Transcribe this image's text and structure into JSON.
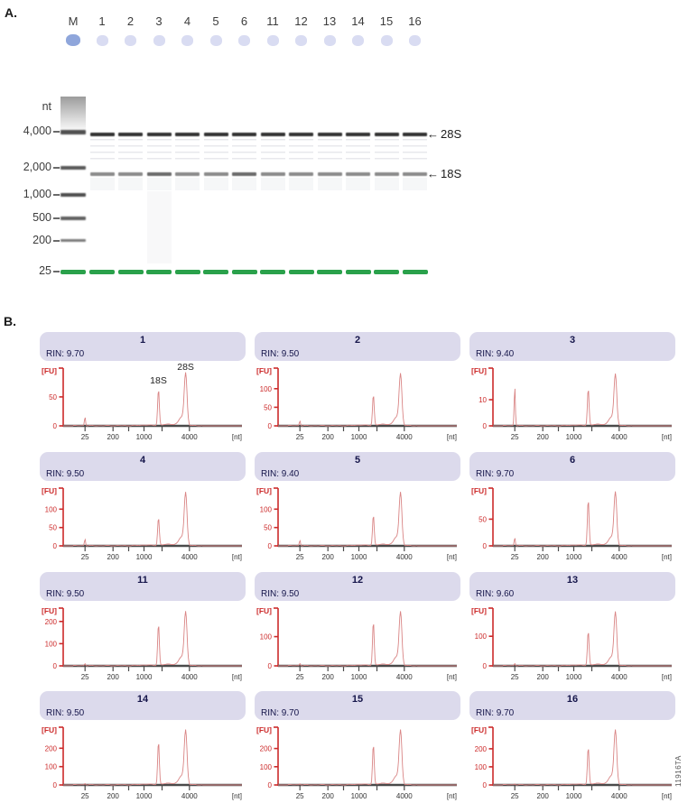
{
  "page": {
    "panel_a_label": "A.",
    "panel_b_label": "B.",
    "side_code": "11916TA"
  },
  "gel": {
    "axis_label": "nt",
    "lane_labels": [
      "M",
      "1",
      "2",
      "3",
      "4",
      "5",
      "6",
      "11",
      "12",
      "13",
      "14",
      "15",
      "16"
    ],
    "ladder_labels": [
      "4,000",
      "2,000",
      "1,000",
      "500",
      "200",
      "25"
    ],
    "band_annotations": [
      {
        "label": "28S"
      },
      {
        "label": "18S"
      }
    ],
    "lower_marker_color": "#2aa14b"
  },
  "chart_data": [
    {
      "type": "line",
      "sample": "1",
      "rin": "RIN: 9.70",
      "ylabel": "[FU]",
      "x_unit": "[nt]",
      "x_tick_labels": [
        "25",
        "200",
        "1000",
        "4000"
      ],
      "y_ticks": [
        0,
        50
      ],
      "ylim": [
        0,
        95
      ],
      "peaks": [
        {
          "name": "lower_marker",
          "x_nt": 25,
          "fu": 15
        },
        {
          "name": "18S",
          "x_nt": 1900,
          "fu": 62
        },
        {
          "name": "28S",
          "x_nt": 4000,
          "fu": 88
        }
      ],
      "peak_annotations": [
        "18S",
        "28S"
      ]
    },
    {
      "type": "line",
      "sample": "2",
      "rin": "RIN: 9.50",
      "ylabel": "[FU]",
      "x_unit": "[nt]",
      "x_tick_labels": [
        "25",
        "200",
        "1000",
        "4000"
      ],
      "y_ticks": [
        0,
        50,
        100
      ],
      "ylim": [
        0,
        148
      ],
      "peaks": [
        {
          "name": "lower_marker",
          "x_nt": 25,
          "fu": 13
        },
        {
          "name": "18S",
          "x_nt": 1900,
          "fu": 82
        },
        {
          "name": "28S",
          "x_nt": 4000,
          "fu": 135
        }
      ],
      "peak_annotations": []
    },
    {
      "type": "line",
      "sample": "3",
      "rin": "RIN: 9.40",
      "ylabel": "[FU]",
      "x_unit": "[nt]",
      "x_tick_labels": [
        "25",
        "200",
        "1000",
        "4000"
      ],
      "y_ticks": [
        0,
        10
      ],
      "ylim": [
        0,
        21
      ],
      "peaks": [
        {
          "name": "lower_marker",
          "x_nt": 25,
          "fu": 15
        },
        {
          "name": "18S",
          "x_nt": 1900,
          "fu": 14
        },
        {
          "name": "28S",
          "x_nt": 4000,
          "fu": 19
        }
      ],
      "peak_annotations": []
    },
    {
      "type": "line",
      "sample": "4",
      "rin": "RIN: 9.50",
      "ylabel": "[FU]",
      "x_unit": "[nt]",
      "x_tick_labels": [
        "25",
        "200",
        "1000",
        "4000"
      ],
      "y_ticks": [
        0,
        50,
        100
      ],
      "ylim": [
        0,
        150
      ],
      "peaks": [
        {
          "name": "lower_marker",
          "x_nt": 25,
          "fu": 18
        },
        {
          "name": "18S",
          "x_nt": 1900,
          "fu": 75
        },
        {
          "name": "28S",
          "x_nt": 4000,
          "fu": 140
        }
      ],
      "peak_annotations": []
    },
    {
      "type": "line",
      "sample": "5",
      "rin": "RIN: 9.40",
      "ylabel": "[FU]",
      "x_unit": "[nt]",
      "x_tick_labels": [
        "25",
        "200",
        "1000",
        "4000"
      ],
      "y_ticks": [
        0,
        50,
        100
      ],
      "ylim": [
        0,
        150
      ],
      "peaks": [
        {
          "name": "lower_marker",
          "x_nt": 25,
          "fu": 15
        },
        {
          "name": "18S",
          "x_nt": 1900,
          "fu": 82
        },
        {
          "name": "28S",
          "x_nt": 4000,
          "fu": 140
        }
      ],
      "peak_annotations": []
    },
    {
      "type": "line",
      "sample": "6",
      "rin": "RIN: 9.70",
      "ylabel": "[FU]",
      "x_unit": "[nt]",
      "x_tick_labels": [
        "25",
        "200",
        "1000",
        "4000"
      ],
      "y_ticks": [
        0,
        50
      ],
      "ylim": [
        0,
        103
      ],
      "peaks": [
        {
          "name": "lower_marker",
          "x_nt": 25,
          "fu": 15
        },
        {
          "name": "18S",
          "x_nt": 1900,
          "fu": 85
        },
        {
          "name": "28S",
          "x_nt": 4000,
          "fu": 97
        }
      ],
      "peak_annotations": []
    },
    {
      "type": "line",
      "sample": "11",
      "rin": "RIN: 9.50",
      "ylabel": "[FU]",
      "x_unit": "[nt]",
      "x_tick_labels": [
        "25",
        "200",
        "1000",
        "4000"
      ],
      "y_ticks": [
        0,
        100,
        200
      ],
      "ylim": [
        0,
        248
      ],
      "peaks": [
        {
          "name": "lower_marker",
          "x_nt": 25,
          "fu": 10
        },
        {
          "name": "18S",
          "x_nt": 1900,
          "fu": 185
        },
        {
          "name": "28S",
          "x_nt": 4000,
          "fu": 235
        }
      ],
      "peak_annotations": []
    },
    {
      "type": "line",
      "sample": "12",
      "rin": "RIN: 9.50",
      "ylabel": "[FU]",
      "x_unit": "[nt]",
      "x_tick_labels": [
        "25",
        "200",
        "1000",
        "4000"
      ],
      "y_ticks": [
        0,
        100
      ],
      "ylim": [
        0,
        188
      ],
      "peaks": [
        {
          "name": "lower_marker",
          "x_nt": 25,
          "fu": 8
        },
        {
          "name": "18S",
          "x_nt": 1900,
          "fu": 148
        },
        {
          "name": "28S",
          "x_nt": 4000,
          "fu": 178
        }
      ],
      "peak_annotations": []
    },
    {
      "type": "line",
      "sample": "13",
      "rin": "RIN: 9.60",
      "ylabel": "[FU]",
      "x_unit": "[nt]",
      "x_tick_labels": [
        "25",
        "200",
        "1000",
        "4000"
      ],
      "y_ticks": [
        0,
        100
      ],
      "ylim": [
        0,
        186
      ],
      "peaks": [
        {
          "name": "lower_marker",
          "x_nt": 25,
          "fu": 8
        },
        {
          "name": "18S",
          "x_nt": 1900,
          "fu": 115
        },
        {
          "name": "28S",
          "x_nt": 4000,
          "fu": 175
        }
      ],
      "peak_annotations": []
    },
    {
      "type": "line",
      "sample": "14",
      "rin": "RIN: 9.50",
      "ylabel": "[FU]",
      "x_unit": "[nt]",
      "x_tick_labels": [
        "25",
        "200",
        "1000",
        "4000"
      ],
      "y_ticks": [
        0,
        100,
        200
      ],
      "ylim": [
        0,
        300
      ],
      "peaks": [
        {
          "name": "lower_marker",
          "x_nt": 25,
          "fu": 8
        },
        {
          "name": "18S",
          "x_nt": 1900,
          "fu": 232
        },
        {
          "name": "28S",
          "x_nt": 4000,
          "fu": 288
        }
      ],
      "peak_annotations": []
    },
    {
      "type": "line",
      "sample": "15",
      "rin": "RIN: 9.70",
      "ylabel": "[FU]",
      "x_unit": "[nt]",
      "x_tick_labels": [
        "25",
        "200",
        "1000",
        "4000"
      ],
      "y_ticks": [
        0,
        100,
        200
      ],
      "ylim": [
        0,
        302
      ],
      "peaks": [
        {
          "name": "lower_marker",
          "x_nt": 25,
          "fu": 6
        },
        {
          "name": "18S",
          "x_nt": 1900,
          "fu": 218
        },
        {
          "name": "28S",
          "x_nt": 4000,
          "fu": 290
        }
      ],
      "peak_annotations": []
    },
    {
      "type": "line",
      "sample": "16",
      "rin": "RIN: 9.70",
      "ylabel": "[FU]",
      "x_unit": "[nt]",
      "x_tick_labels": [
        "25",
        "200",
        "1000",
        "4000"
      ],
      "y_ticks": [
        0,
        100,
        200
      ],
      "ylim": [
        0,
        304
      ],
      "peaks": [
        {
          "name": "lower_marker",
          "x_nt": 25,
          "fu": 6
        },
        {
          "name": "18S",
          "x_nt": 1900,
          "fu": 205
        },
        {
          "name": "28S",
          "x_nt": 4000,
          "fu": 292
        }
      ],
      "peak_annotations": []
    }
  ]
}
